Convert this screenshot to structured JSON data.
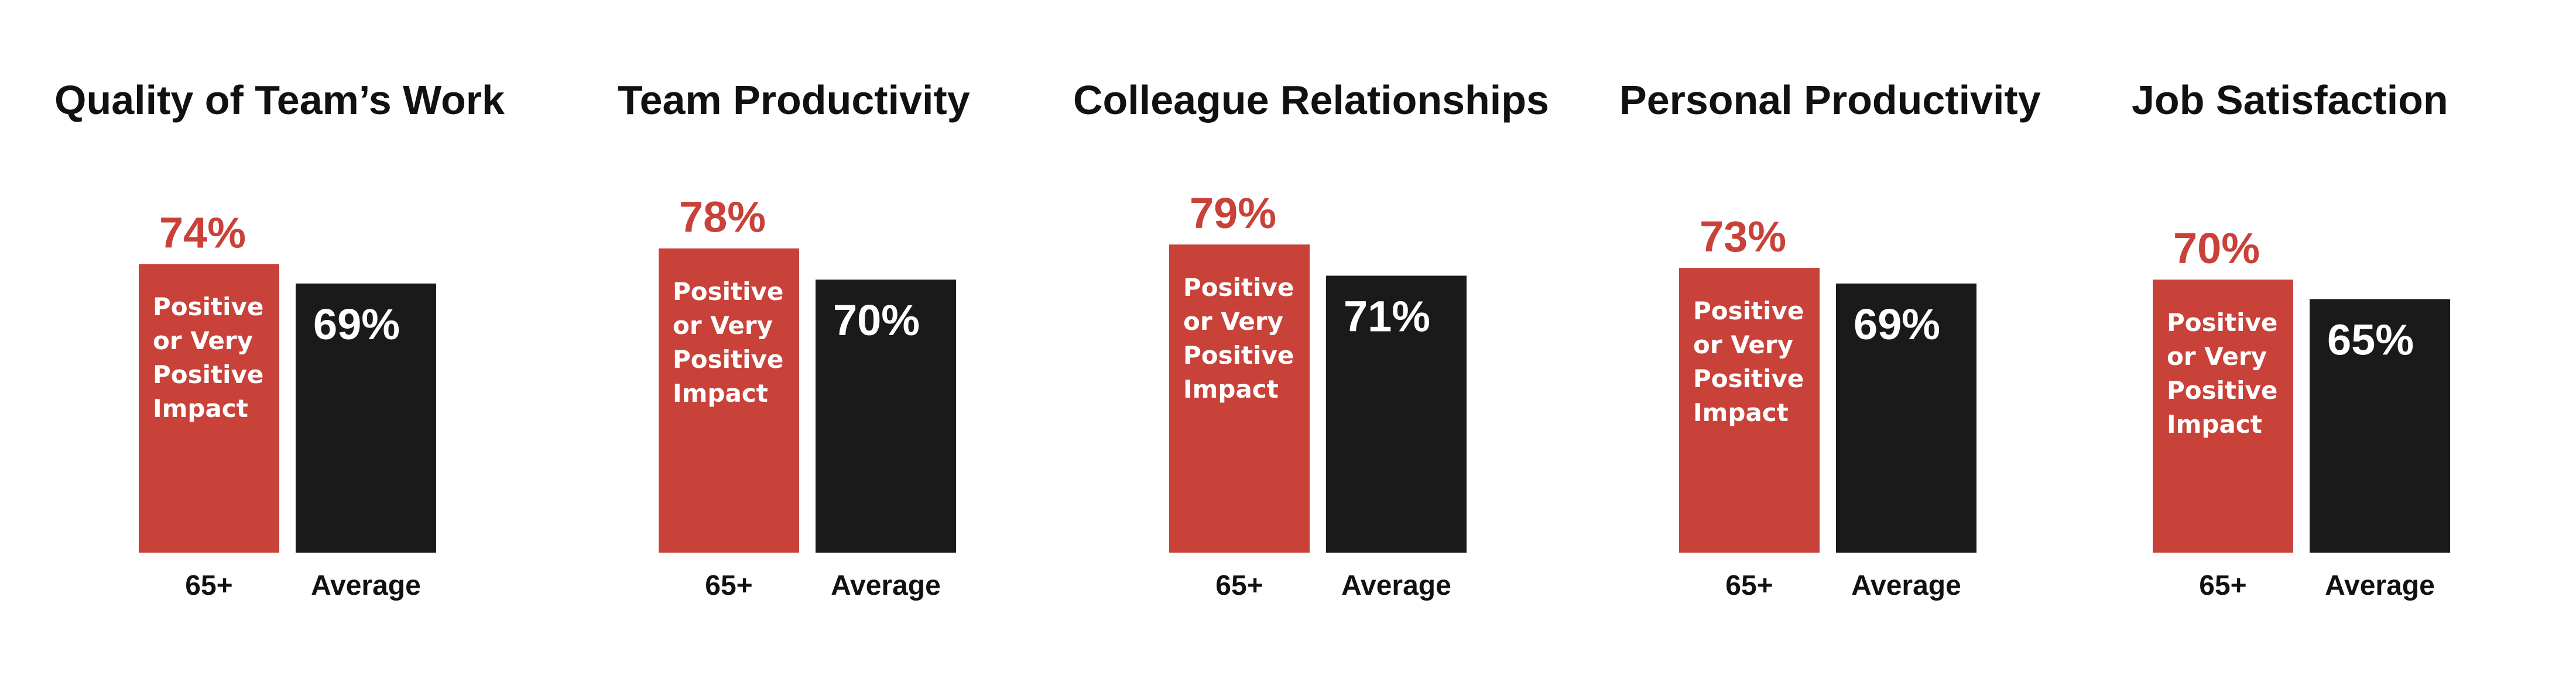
{
  "chart_data": [
    {
      "type": "bar",
      "title": "Quality of Team’s Work",
      "categories": [
        "65+",
        "Average"
      ],
      "values": [
        74,
        69
      ],
      "value_labels": [
        "74%",
        "69%"
      ],
      "annotation": "Positive or Very Positive Impact",
      "colors": [
        "#c8423a",
        "#1b1a1a"
      ]
    },
    {
      "type": "bar",
      "title": "Team Productivity",
      "categories": [
        "65+",
        "Average"
      ],
      "values": [
        78,
        70
      ],
      "value_labels": [
        "78%",
        "70%"
      ],
      "annotation": "Positive or Very Positive Impact",
      "colors": [
        "#c8423a",
        "#1b1a1a"
      ]
    },
    {
      "type": "bar",
      "title": "Colleague Relationships",
      "categories": [
        "65+",
        "Average"
      ],
      "values": [
        79,
        71
      ],
      "value_labels": [
        "79%",
        "71%"
      ],
      "annotation": "Positive or Very Positive Impact",
      "colors": [
        "#c8423a",
        "#1b1a1a"
      ]
    },
    {
      "type": "bar",
      "title": "Personal Productivity",
      "categories": [
        "65+",
        "Average"
      ],
      "values": [
        73,
        69
      ],
      "value_labels": [
        "73%",
        "69%"
      ],
      "annotation": "Positive or Very Positive Impact",
      "colors": [
        "#c8423a",
        "#1b1a1a"
      ]
    },
    {
      "type": "bar",
      "title": "Job Satisfaction",
      "categories": [
        "65+",
        "Average"
      ],
      "values": [
        70,
        65
      ],
      "value_labels": [
        "70%",
        "65%"
      ],
      "annotation": "Positive or Very Positive Impact",
      "colors": [
        "#c8423a",
        "#1b1a1a"
      ]
    }
  ]
}
